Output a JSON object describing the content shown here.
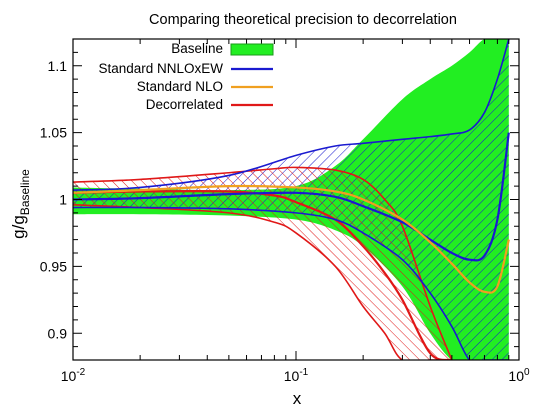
{
  "chart_data": {
    "type": "area",
    "title": "Comparing theoretical precision to decorrelation",
    "xlabel": "x",
    "ylabel_main": "g/g",
    "ylabel_sub": "Baseline",
    "xscale": "log",
    "xlim": [
      0.01,
      1
    ],
    "ylim": [
      0.88,
      1.12
    ],
    "xticks": [
      {
        "value": 0.01,
        "base": "10",
        "exp": "-2"
      },
      {
        "value": 0.1,
        "base": "10",
        "exp": "-1"
      },
      {
        "value": 1,
        "base": "10",
        "exp": "0"
      }
    ],
    "yticks": [
      {
        "value": 0.9,
        "label": "0.9"
      },
      {
        "value": 0.95,
        "label": "0.95"
      },
      {
        "value": 1.0,
        "label": "1"
      },
      {
        "value": 1.05,
        "label": "1.05"
      },
      {
        "value": 1.1,
        "label": "1.1"
      }
    ],
    "grid": false,
    "legend_position": "top-left",
    "colors": {
      "baseline_fill": "#22ee22",
      "nnlo": "#1a1ad0",
      "nlo": "#f0a020",
      "decorrelated": "#e01818"
    },
    "series": [
      {
        "name": "Baseline",
        "style": "band",
        "x": [
          0.01,
          0.02,
          0.05,
          0.1,
          0.15,
          0.2,
          0.3,
          0.4,
          0.5,
          0.6,
          0.7,
          0.8,
          0.9
        ],
        "upper": [
          1.009,
          1.008,
          1.007,
          1.01,
          1.025,
          1.045,
          1.075,
          1.09,
          1.1,
          1.11,
          1.12,
          1.12,
          1.12
        ],
        "lower": [
          0.989,
          0.989,
          0.988,
          0.985,
          0.977,
          0.965,
          0.935,
          0.9,
          0.88,
          0.88,
          0.88,
          0.88,
          0.88
        ]
      },
      {
        "name": "Standard NNLOxEW",
        "style": "hatched band",
        "x": [
          0.01,
          0.02,
          0.05,
          0.1,
          0.15,
          0.2,
          0.3,
          0.4,
          0.5,
          0.6,
          0.7,
          0.8,
          0.9
        ],
        "upper": [
          1.007,
          1.009,
          1.018,
          1.033,
          1.04,
          1.042,
          1.045,
          1.047,
          1.049,
          1.052,
          1.065,
          1.09,
          1.12
        ],
        "lower": [
          0.994,
          0.994,
          0.993,
          0.99,
          0.985,
          0.975,
          0.955,
          0.93,
          0.905,
          0.88,
          0.88,
          0.88,
          0.88
        ],
        "central": [
          1.0,
          1.001,
          1.004,
          1.005,
          1.002,
          0.995,
          0.983,
          0.97,
          0.96,
          0.955,
          0.958,
          0.985,
          1.05
        ]
      },
      {
        "name": "Standard NLO",
        "style": "line",
        "x": [
          0.01,
          0.02,
          0.05,
          0.1,
          0.15,
          0.2,
          0.3,
          0.4,
          0.5,
          0.6,
          0.7,
          0.8,
          0.9
        ],
        "central": [
          1.005,
          1.007,
          1.01,
          1.009,
          1.006,
          1.0,
          0.985,
          0.968,
          0.952,
          0.938,
          0.931,
          0.935,
          0.97
        ]
      },
      {
        "name": "Decorrelated",
        "style": "hatched band",
        "x": [
          0.01,
          0.02,
          0.05,
          0.08,
          0.1,
          0.15,
          0.2,
          0.25,
          0.3,
          0.4,
          0.5
        ],
        "upper": [
          1.013,
          1.015,
          1.02,
          1.023,
          1.024,
          1.022,
          1.015,
          1.0,
          0.98,
          0.92,
          0.88
        ],
        "lower": [
          0.996,
          0.994,
          0.99,
          0.983,
          0.975,
          0.95,
          0.92,
          0.9,
          0.88,
          0.88,
          0.88
        ],
        "central": [
          1.005,
          1.006,
          1.006,
          1.003,
          0.998,
          0.985,
          0.965,
          0.945,
          0.925,
          0.885,
          0.88
        ]
      }
    ]
  }
}
